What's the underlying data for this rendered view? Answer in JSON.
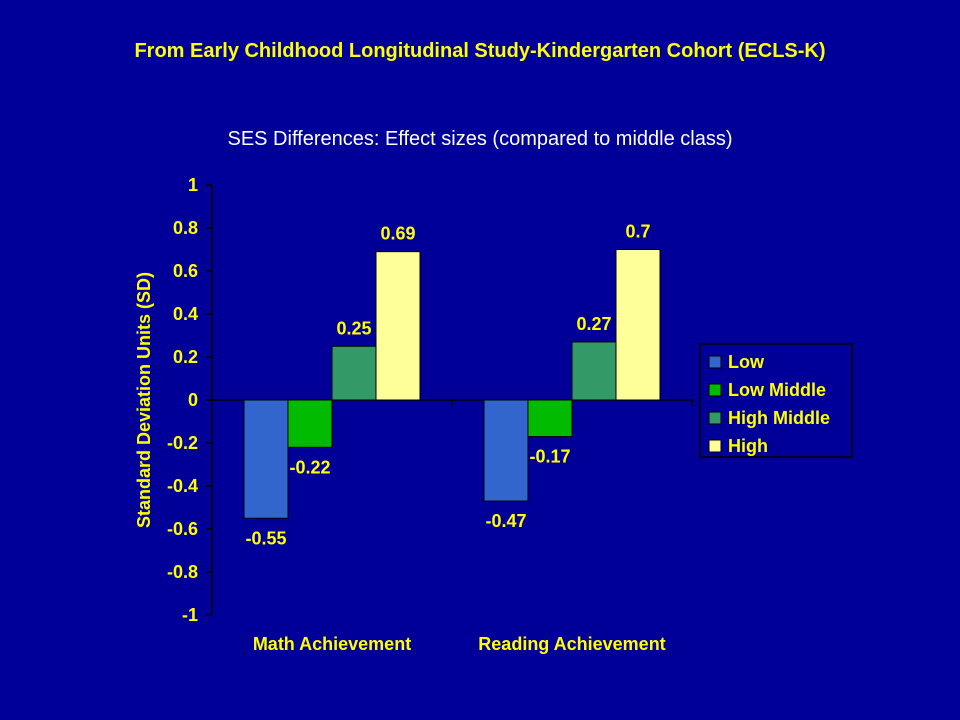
{
  "slide": {
    "heading": "From Early Childhood Longitudinal Study-Kindergarten Cohort (ECLS-K)"
  },
  "chart_data": {
    "type": "bar",
    "title": "SES Differences:  Effect sizes (compared to middle class)",
    "xlabel": "",
    "ylabel": "Standard Deviation Units (SD)",
    "ylim": [
      -1,
      1
    ],
    "yticks": [
      1,
      0.8,
      0.6,
      0.4,
      0.2,
      0,
      -0.2,
      -0.4,
      -0.6,
      -0.8,
      -1
    ],
    "ytick_labels": [
      "1",
      "0.8",
      "0.6",
      "0.4",
      "0.2",
      "0",
      "-0.2",
      "-0.4",
      "-0.6",
      "-0.8",
      "-1"
    ],
    "categories": [
      "Math Achievement",
      "Reading Achievement"
    ],
    "series": [
      {
        "name": "Low",
        "color": "#3366cc",
        "values": [
          -0.55,
          -0.47
        ],
        "labels": [
          "-0.55",
          "-0.47"
        ]
      },
      {
        "name": "Low Middle",
        "color": "#00bb00",
        "values": [
          -0.22,
          -0.17
        ],
        "labels": [
          "-0.22",
          "-0.17"
        ]
      },
      {
        "name": "High Middle",
        "color": "#339966",
        "values": [
          0.25,
          0.27
        ],
        "labels": [
          "0.25",
          "0.27"
        ]
      },
      {
        "name": "High",
        "color": "#ffff99",
        "values": [
          0.69,
          0.7
        ],
        "labels": [
          "0.69",
          "0.7"
        ]
      }
    ],
    "legend_position": "right",
    "grid": false,
    "colors": {
      "axis": "#000000",
      "text": "#ffff00",
      "background": "#000099"
    }
  }
}
